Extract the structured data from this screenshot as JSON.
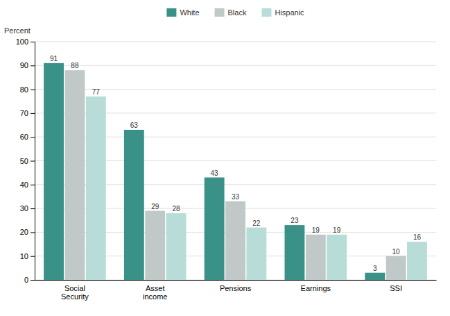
{
  "chart_data": {
    "type": "bar",
    "categories": [
      "Social\nSecurity",
      "Asset\nincome",
      "Pensions",
      "Earnings",
      "SSI"
    ],
    "series": [
      {
        "name": "White",
        "color": "#3a9188",
        "values": [
          91,
          63,
          43,
          23,
          3
        ]
      },
      {
        "name": "Black",
        "color": "#c0c8c8",
        "values": [
          88,
          29,
          33,
          19,
          10
        ]
      },
      {
        "name": "Hispanic",
        "color": "#b8dcd8",
        "values": [
          77,
          28,
          22,
          19,
          16
        ]
      }
    ],
    "ylabel": "Percent",
    "ylim": [
      0,
      100
    ],
    "yticks": [
      0,
      10,
      20,
      30,
      40,
      50,
      60,
      70,
      80,
      90,
      100
    ],
    "grid": true,
    "legend": "top",
    "data_labels": true
  }
}
